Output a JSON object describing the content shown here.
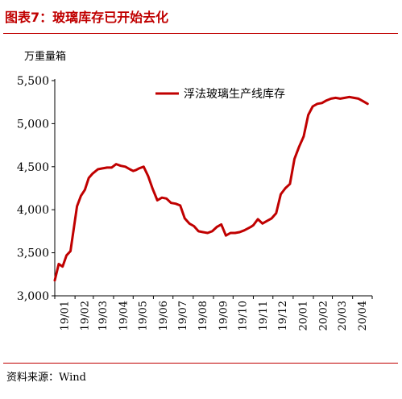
{
  "figure": {
    "title": "图表7：玻璃库存已开始去化",
    "source": "资料来源：Wind"
  },
  "colors": {
    "series": "#c00000",
    "title": "#c00000",
    "axis": "#000000"
  },
  "chart_data": {
    "type": "line",
    "title": "",
    "ylabel": "万重量箱",
    "xlabel": "",
    "ylim": [
      3000,
      5500
    ],
    "yticks": [
      3000,
      3500,
      4000,
      4500,
      5000,
      5500
    ],
    "ytick_labels": [
      "3,000",
      "3,500",
      "4,000",
      "4,500",
      "5,000",
      "5,500"
    ],
    "xticks": [
      "19/01",
      "19/02",
      "19/03",
      "19/04",
      "19/05",
      "19/06",
      "19/07",
      "19/08",
      "19/09",
      "19/10",
      "19/11",
      "19/12",
      "20/01",
      "20/02",
      "20/03",
      "20/04"
    ],
    "legend": "top-right",
    "grid": false,
    "series": [
      {
        "name": "浮法玻璃生产线库存",
        "x": [
          "2019-01-01",
          "2019-01-07",
          "2019-01-13",
          "2019-01-19",
          "2019-01-25",
          "2019-02-04",
          "2019-02-10",
          "2019-02-16",
          "2019-02-22",
          "2019-02-28",
          "2019-03-08",
          "2019-03-15",
          "2019-03-22",
          "2019-03-29",
          "2019-04-05",
          "2019-04-12",
          "2019-04-19",
          "2019-04-26",
          "2019-05-01",
          "2019-05-05",
          "2019-05-10",
          "2019-05-17",
          "2019-05-24",
          "2019-05-31",
          "2019-06-07",
          "2019-06-14",
          "2019-06-21",
          "2019-06-28",
          "2019-07-05",
          "2019-07-12",
          "2019-07-19",
          "2019-07-26",
          "2019-08-02",
          "2019-08-09",
          "2019-08-16",
          "2019-08-23",
          "2019-08-30",
          "2019-09-06",
          "2019-09-13",
          "2019-09-20",
          "2019-09-27",
          "2019-10-04",
          "2019-10-11",
          "2019-10-18",
          "2019-10-23",
          "2019-10-28",
          "2019-11-01",
          "2019-11-08",
          "2019-11-15",
          "2019-11-22",
          "2019-11-29",
          "2019-12-06",
          "2019-12-13",
          "2019-12-20",
          "2019-12-27",
          "2020-01-03",
          "2020-01-10",
          "2020-01-17",
          "2020-01-24",
          "2020-01-31",
          "2020-02-07",
          "2020-02-14",
          "2020-02-21",
          "2020-02-28",
          "2020-03-06",
          "2020-03-13",
          "2020-03-20",
          "2020-03-27",
          "2020-04-03",
          "2020-04-10",
          "2020-04-17",
          "2020-04-24"
        ],
        "values": [
          3180,
          3370,
          3340,
          3470,
          3520,
          4040,
          4160,
          4230,
          4370,
          4420,
          4470,
          4480,
          4490,
          4490,
          4530,
          4510,
          4500,
          4470,
          4450,
          4460,
          4480,
          4500,
          4390,
          4240,
          4110,
          4140,
          4130,
          4080,
          4070,
          4050,
          3900,
          3840,
          3810,
          3750,
          3740,
          3730,
          3750,
          3800,
          3830,
          3700,
          3730,
          3730,
          3740,
          3760,
          3780,
          3800,
          3820,
          3890,
          3840,
          3870,
          3900,
          3960,
          4180,
          4250,
          4300,
          4590,
          4730,
          4850,
          5100,
          5200,
          5230,
          5240,
          5270,
          5290,
          5300,
          5290,
          5300,
          5310,
          5300,
          5290,
          5260,
          5230
        ]
      }
    ]
  }
}
